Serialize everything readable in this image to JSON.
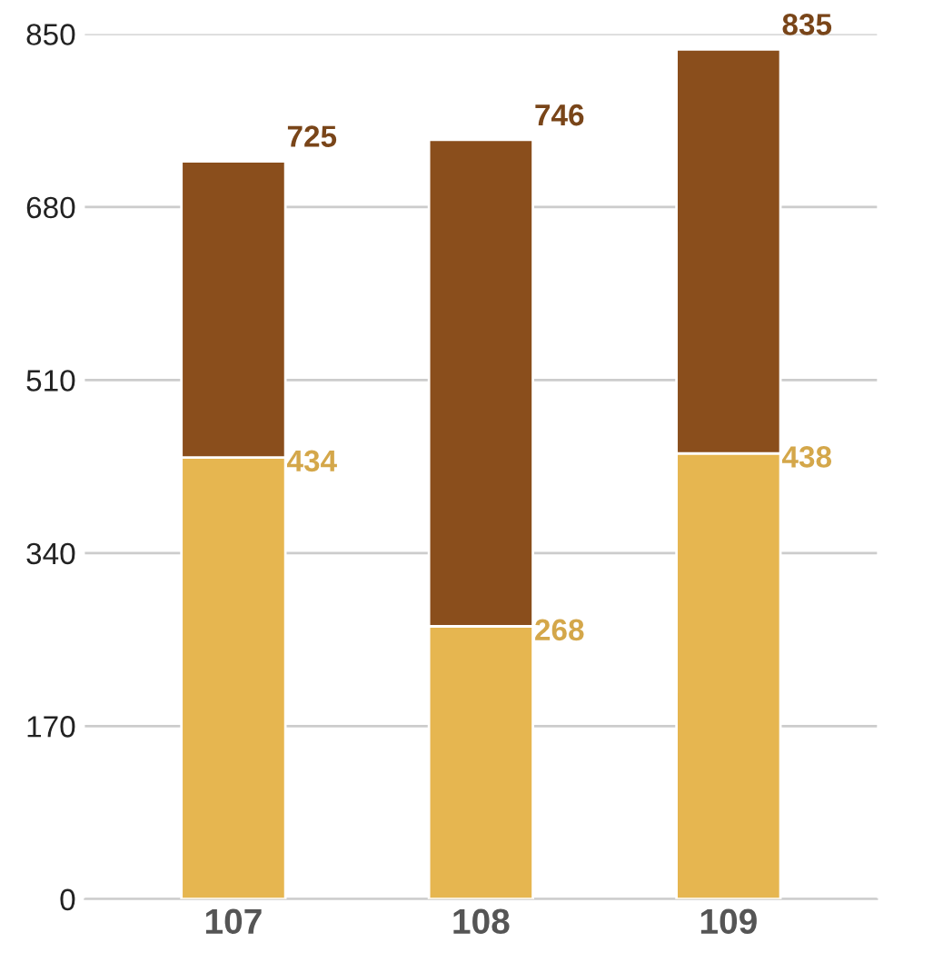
{
  "chart_data": {
    "type": "bar",
    "stacked": true,
    "categories": [
      "107",
      "108",
      "109"
    ],
    "series": [
      {
        "color": "#e6b650",
        "values": [
          434,
          268,
          438
        ],
        "value_labels": [
          "434",
          "268",
          "438"
        ]
      },
      {
        "color": "#8a4e1c",
        "values": [
          291,
          478,
          397
        ]
      }
    ],
    "totals": [
      "725",
      "746",
      "835"
    ],
    "ylim": [
      0,
      850
    ],
    "yticks": [
      0,
      170,
      340,
      510,
      680,
      850
    ],
    "grid": "y",
    "legend": false
  }
}
